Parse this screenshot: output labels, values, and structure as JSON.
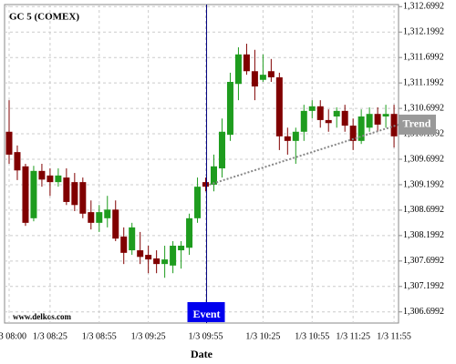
{
  "chart_data": {
    "type": "candlestick",
    "title": "GC 5 (COMEX)",
    "watermark": "www.delkos.com",
    "x_label": "Date",
    "categories": [
      "1/3 08:00",
      null,
      null,
      null,
      null,
      "1/3 08:25",
      null,
      null,
      null,
      null,
      null,
      "1/3 08:55",
      null,
      null,
      null,
      null,
      null,
      "1/3 09:25",
      null,
      null,
      null,
      null,
      null,
      null,
      "1/3 09:55",
      null,
      null,
      null,
      null,
      null,
      null,
      "1/3 10:25",
      null,
      null,
      null,
      null,
      null,
      "1/3 10:55",
      null,
      null,
      null,
      null,
      "1/3 11:25",
      null,
      null,
      null,
      null,
      "1/3 11:55"
    ],
    "open": [
      1310.24,
      1309.84,
      1309.56,
      1308.54,
      1309.47,
      1309.38,
      1309.25,
      1309.34,
      1309.25,
      1309.25,
      1308.66,
      1308.45,
      1308.54,
      1308.71,
      1308.18,
      1307.91,
      1307.91,
      1307.82,
      1307.75,
      1307.64,
      1307.61,
      1307.91,
      1307.96,
      1308.54,
      1309.25,
      1309.2,
      1309.52,
      1310.18,
      1311.18,
      1311.76,
      1311.43,
      1311.26,
      1311.43,
      1311.31,
      1310.15,
      1310.06,
      1310.24,
      1310.65,
      1310.74,
      1310.47,
      1310.54,
      1310.65,
      1310.36,
      1310.06,
      1310.32,
      1310.59,
      1310.54,
      1310.59
    ],
    "high": [
      1310.86,
      1309.97,
      1309.61,
      1309.57,
      1309.61,
      1309.52,
      1309.52,
      1309.52,
      1309.43,
      1309.34,
      1308.89,
      1308.8,
      1308.98,
      1308.89,
      1308.36,
      1308.45,
      1308.27,
      1308.0,
      1307.91,
      1308.0,
      1308.09,
      1308.09,
      1308.63,
      1309.34,
      1309.34,
      1309.79,
      1310.5,
      1311.4,
      1311.9,
      1311.97,
      1311.85,
      1311.76,
      1311.67,
      1311.4,
      1310.32,
      1310.32,
      1310.77,
      1310.86,
      1310.86,
      1310.68,
      1310.72,
      1310.77,
      1310.5,
      1310.68,
      1310.72,
      1310.72,
      1310.77,
      1310.77
    ],
    "low": [
      1309.61,
      1309.29,
      1308.39,
      1308.48,
      1309.16,
      1308.98,
      1309.16,
      1308.8,
      1308.68,
      1308.54,
      1308.32,
      1308.27,
      1308.36,
      1308.09,
      1307.64,
      1307.82,
      1307.64,
      1307.46,
      1307.46,
      1307.37,
      1307.46,
      1307.55,
      1307.82,
      1308.45,
      1309.07,
      1309.07,
      1309.34,
      1310.06,
      1310.86,
      1311.36,
      1310.86,
      1311.22,
      1311.22,
      1309.88,
      1309.79,
      1309.61,
      1310.06,
      1310.5,
      1310.32,
      1310.24,
      1310.32,
      1310.24,
      1309.88,
      1310.0,
      1310.24,
      1310.24,
      1310.32,
      1309.93
    ],
    "close": [
      1309.79,
      1309.48,
      1308.45,
      1309.47,
      1309.3,
      1309.25,
      1309.38,
      1308.86,
      1308.8,
      1308.63,
      1308.45,
      1308.66,
      1308.71,
      1308.14,
      1307.86,
      1308.36,
      1307.78,
      1307.73,
      1307.64,
      1307.73,
      1308.0,
      1308.0,
      1308.54,
      1309.16,
      1309.16,
      1309.56,
      1310.24,
      1311.22,
      1311.76,
      1311.43,
      1311.13,
      1311.36,
      1311.31,
      1310.15,
      1310.06,
      1310.24,
      1310.65,
      1310.74,
      1310.47,
      1310.41,
      1310.65,
      1310.36,
      1310.06,
      1310.54,
      1310.59,
      1310.38,
      1310.59,
      1310.15
    ],
    "up_color": "#1e9c1e",
    "down_color": "#800000",
    "ylim": [
      1306.48,
      1312.74
    ],
    "yticks": [
      {
        "value": 1306.6992,
        "label": "1,306.6992"
      },
      {
        "value": 1307.1992,
        "label": "1,307.1992"
      },
      {
        "value": 1307.6992,
        "label": "1,307.6992"
      },
      {
        "value": 1308.1992,
        "label": "1,308.1992"
      },
      {
        "value": 1308.6992,
        "label": "1,308.6992"
      },
      {
        "value": 1309.1992,
        "label": "1,309.1992"
      },
      {
        "value": 1309.6992,
        "label": "1,309.6992"
      },
      {
        "value": 1310.1992,
        "label": "1,310.1992"
      },
      {
        "value": 1310.6992,
        "label": "1,310.6992"
      },
      {
        "value": 1311.1992,
        "label": "1,311.1992"
      },
      {
        "value": 1311.6992,
        "label": "1,311.6992"
      },
      {
        "value": 1312.1992,
        "label": "1,312.1992"
      },
      {
        "value": 1312.6992,
        "label": "1,312.6992"
      }
    ],
    "grid": true,
    "event": {
      "label": "Event",
      "index": 24,
      "color": "#0000ee"
    },
    "trend": {
      "label": "Trend",
      "from_index": 24,
      "to_index": 47,
      "values": [
        1309.2,
        1310.38
      ]
    }
  }
}
